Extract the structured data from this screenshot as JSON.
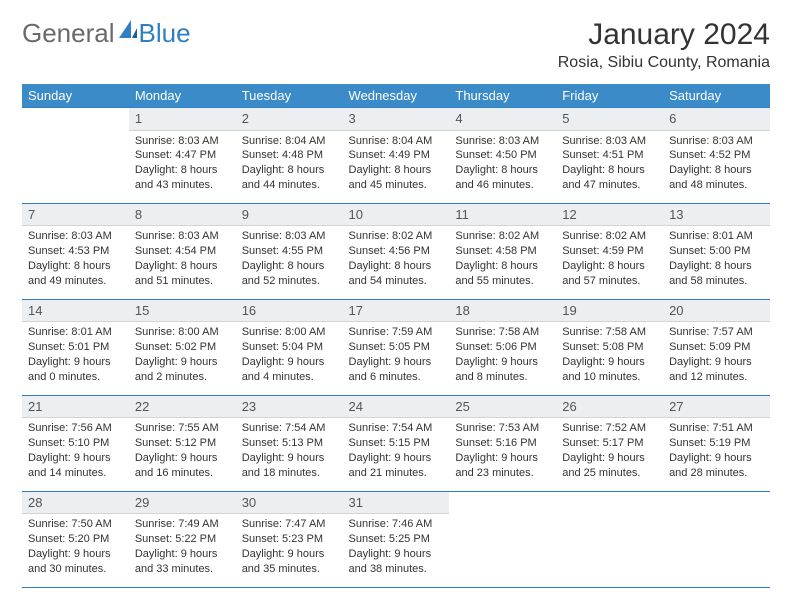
{
  "logo": {
    "text1": "General",
    "text2": "Blue"
  },
  "title": "January 2024",
  "location": "Rosia, Sibiu County, Romania",
  "colors": {
    "header_bg": "#3b8bc9",
    "header_text": "#ffffff",
    "rule": "#2f7fc2",
    "daynum_bg": "#eceff1",
    "body_text": "#333333",
    "logo_gray": "#6a6a6a",
    "logo_blue": "#2f7fc2"
  },
  "weekdays": [
    "Sunday",
    "Monday",
    "Tuesday",
    "Wednesday",
    "Thursday",
    "Friday",
    "Saturday"
  ],
  "weeks": [
    [
      {
        "n": "",
        "lines": []
      },
      {
        "n": "1",
        "lines": [
          "Sunrise: 8:03 AM",
          "Sunset: 4:47 PM",
          "Daylight: 8 hours",
          "and 43 minutes."
        ]
      },
      {
        "n": "2",
        "lines": [
          "Sunrise: 8:04 AM",
          "Sunset: 4:48 PM",
          "Daylight: 8 hours",
          "and 44 minutes."
        ]
      },
      {
        "n": "3",
        "lines": [
          "Sunrise: 8:04 AM",
          "Sunset: 4:49 PM",
          "Daylight: 8 hours",
          "and 45 minutes."
        ]
      },
      {
        "n": "4",
        "lines": [
          "Sunrise: 8:03 AM",
          "Sunset: 4:50 PM",
          "Daylight: 8 hours",
          "and 46 minutes."
        ]
      },
      {
        "n": "5",
        "lines": [
          "Sunrise: 8:03 AM",
          "Sunset: 4:51 PM",
          "Daylight: 8 hours",
          "and 47 minutes."
        ]
      },
      {
        "n": "6",
        "lines": [
          "Sunrise: 8:03 AM",
          "Sunset: 4:52 PM",
          "Daylight: 8 hours",
          "and 48 minutes."
        ]
      }
    ],
    [
      {
        "n": "7",
        "lines": [
          "Sunrise: 8:03 AM",
          "Sunset: 4:53 PM",
          "Daylight: 8 hours",
          "and 49 minutes."
        ]
      },
      {
        "n": "8",
        "lines": [
          "Sunrise: 8:03 AM",
          "Sunset: 4:54 PM",
          "Daylight: 8 hours",
          "and 51 minutes."
        ]
      },
      {
        "n": "9",
        "lines": [
          "Sunrise: 8:03 AM",
          "Sunset: 4:55 PM",
          "Daylight: 8 hours",
          "and 52 minutes."
        ]
      },
      {
        "n": "10",
        "lines": [
          "Sunrise: 8:02 AM",
          "Sunset: 4:56 PM",
          "Daylight: 8 hours",
          "and 54 minutes."
        ]
      },
      {
        "n": "11",
        "lines": [
          "Sunrise: 8:02 AM",
          "Sunset: 4:58 PM",
          "Daylight: 8 hours",
          "and 55 minutes."
        ]
      },
      {
        "n": "12",
        "lines": [
          "Sunrise: 8:02 AM",
          "Sunset: 4:59 PM",
          "Daylight: 8 hours",
          "and 57 minutes."
        ]
      },
      {
        "n": "13",
        "lines": [
          "Sunrise: 8:01 AM",
          "Sunset: 5:00 PM",
          "Daylight: 8 hours",
          "and 58 minutes."
        ]
      }
    ],
    [
      {
        "n": "14",
        "lines": [
          "Sunrise: 8:01 AM",
          "Sunset: 5:01 PM",
          "Daylight: 9 hours",
          "and 0 minutes."
        ]
      },
      {
        "n": "15",
        "lines": [
          "Sunrise: 8:00 AM",
          "Sunset: 5:02 PM",
          "Daylight: 9 hours",
          "and 2 minutes."
        ]
      },
      {
        "n": "16",
        "lines": [
          "Sunrise: 8:00 AM",
          "Sunset: 5:04 PM",
          "Daylight: 9 hours",
          "and 4 minutes."
        ]
      },
      {
        "n": "17",
        "lines": [
          "Sunrise: 7:59 AM",
          "Sunset: 5:05 PM",
          "Daylight: 9 hours",
          "and 6 minutes."
        ]
      },
      {
        "n": "18",
        "lines": [
          "Sunrise: 7:58 AM",
          "Sunset: 5:06 PM",
          "Daylight: 9 hours",
          "and 8 minutes."
        ]
      },
      {
        "n": "19",
        "lines": [
          "Sunrise: 7:58 AM",
          "Sunset: 5:08 PM",
          "Daylight: 9 hours",
          "and 10 minutes."
        ]
      },
      {
        "n": "20",
        "lines": [
          "Sunrise: 7:57 AM",
          "Sunset: 5:09 PM",
          "Daylight: 9 hours",
          "and 12 minutes."
        ]
      }
    ],
    [
      {
        "n": "21",
        "lines": [
          "Sunrise: 7:56 AM",
          "Sunset: 5:10 PM",
          "Daylight: 9 hours",
          "and 14 minutes."
        ]
      },
      {
        "n": "22",
        "lines": [
          "Sunrise: 7:55 AM",
          "Sunset: 5:12 PM",
          "Daylight: 9 hours",
          "and 16 minutes."
        ]
      },
      {
        "n": "23",
        "lines": [
          "Sunrise: 7:54 AM",
          "Sunset: 5:13 PM",
          "Daylight: 9 hours",
          "and 18 minutes."
        ]
      },
      {
        "n": "24",
        "lines": [
          "Sunrise: 7:54 AM",
          "Sunset: 5:15 PM",
          "Daylight: 9 hours",
          "and 21 minutes."
        ]
      },
      {
        "n": "25",
        "lines": [
          "Sunrise: 7:53 AM",
          "Sunset: 5:16 PM",
          "Daylight: 9 hours",
          "and 23 minutes."
        ]
      },
      {
        "n": "26",
        "lines": [
          "Sunrise: 7:52 AM",
          "Sunset: 5:17 PM",
          "Daylight: 9 hours",
          "and 25 minutes."
        ]
      },
      {
        "n": "27",
        "lines": [
          "Sunrise: 7:51 AM",
          "Sunset: 5:19 PM",
          "Daylight: 9 hours",
          "and 28 minutes."
        ]
      }
    ],
    [
      {
        "n": "28",
        "lines": [
          "Sunrise: 7:50 AM",
          "Sunset: 5:20 PM",
          "Daylight: 9 hours",
          "and 30 minutes."
        ]
      },
      {
        "n": "29",
        "lines": [
          "Sunrise: 7:49 AM",
          "Sunset: 5:22 PM",
          "Daylight: 9 hours",
          "and 33 minutes."
        ]
      },
      {
        "n": "30",
        "lines": [
          "Sunrise: 7:47 AM",
          "Sunset: 5:23 PM",
          "Daylight: 9 hours",
          "and 35 minutes."
        ]
      },
      {
        "n": "31",
        "lines": [
          "Sunrise: 7:46 AM",
          "Sunset: 5:25 PM",
          "Daylight: 9 hours",
          "and 38 minutes."
        ]
      },
      {
        "n": "",
        "lines": []
      },
      {
        "n": "",
        "lines": []
      },
      {
        "n": "",
        "lines": []
      }
    ]
  ]
}
